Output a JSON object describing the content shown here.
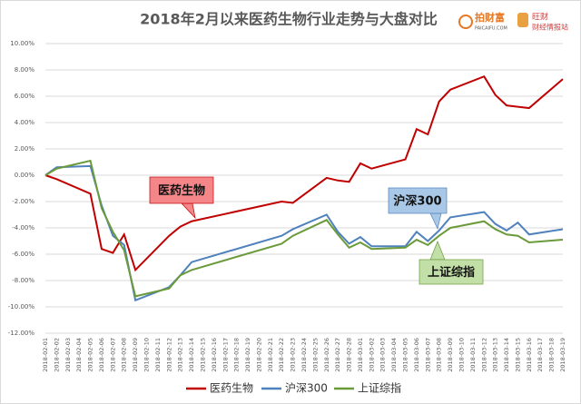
{
  "chart_data": {
    "type": "line",
    "title": "2018年2月以来医药生物行业走势与大盘对比",
    "logo": {
      "brand": "拍财富",
      "site": "PAICAIFU.COM",
      "name": "旺财",
      "tagline": "财经情报站"
    },
    "categories": [
      "2018-02-01",
      "2018-02-02",
      "2018-02-03",
      "2018-02-04",
      "2018-02-05",
      "2018-02-06",
      "2018-02-07",
      "2018-02-08",
      "2018-02-09",
      "2018-02-10",
      "2018-02-11",
      "2018-02-12",
      "2018-02-13",
      "2018-02-14",
      "2018-02-15",
      "2018-02-16",
      "2018-02-17",
      "2018-02-18",
      "2018-02-19",
      "2018-02-20",
      "2018-02-21",
      "2018-02-22",
      "2018-02-23",
      "2018-02-24",
      "2018-02-25",
      "2018-02-26",
      "2018-02-27",
      "2018-02-28",
      "2018-03-01",
      "2018-03-02",
      "2018-03-03",
      "2018-03-04",
      "2018-03-05",
      "2018-03-06",
      "2018-03-07",
      "2018-03-08",
      "2018-03-09",
      "2018-03-10",
      "2018-03-11",
      "2018-03-12",
      "2018-03-13",
      "2018-03-14",
      "2018-03-15",
      "2018-03-16",
      "2018-03-17",
      "2018-03-18",
      "2018-03-19"
    ],
    "x": [
      "2018-02-01",
      "2018-02-02",
      "2018-02-05",
      "2018-02-06",
      "2018-02-07",
      "2018-02-08",
      "2018-02-09",
      "2018-02-12",
      "2018-02-13",
      "2018-02-14",
      "2018-02-22",
      "2018-02-23",
      "2018-02-26",
      "2018-02-27",
      "2018-02-28",
      "2018-03-01",
      "2018-03-02",
      "2018-03-05",
      "2018-03-06",
      "2018-03-07",
      "2018-03-08",
      "2018-03-09",
      "2018-03-12",
      "2018-03-13",
      "2018-03-14",
      "2018-03-15",
      "2018-03-16",
      "2018-03-19"
    ],
    "series": [
      {
        "name": "医药生物",
        "color": "#c00000",
        "values": [
          0,
          -0.3,
          -1.4,
          -5.6,
          -5.9,
          -4.5,
          -7.2,
          -4.6,
          -3.9,
          -3.5,
          -2.0,
          -2.1,
          -0.2,
          -0.4,
          -0.5,
          0.9,
          0.5,
          1.2,
          3.5,
          3.1,
          5.6,
          6.5,
          7.5,
          6.1,
          5.3,
          5.2,
          5.1,
          7.3
        ]
      },
      {
        "name": "沪深300",
        "color": "#4f81bd",
        "values": [
          0,
          0.6,
          0.7,
          -2.3,
          -4.6,
          -5.3,
          -9.5,
          -8.5,
          -7.6,
          -6.6,
          -4.6,
          -4.1,
          -3.0,
          -4.3,
          -5.2,
          -4.7,
          -5.4,
          -5.4,
          -4.3,
          -5.0,
          -4.2,
          -3.2,
          -2.8,
          -3.7,
          -4.2,
          -3.6,
          -4.5,
          -4.1
        ]
      },
      {
        "name": "上证综指",
        "color": "#6a9a3a",
        "values": [
          0,
          0.5,
          1.1,
          -2.5,
          -4.3,
          -5.7,
          -9.2,
          -8.6,
          -7.6,
          -7.2,
          -5.2,
          -4.6,
          -3.4,
          -4.5,
          -5.5,
          -5.1,
          -5.6,
          -5.5,
          -4.9,
          -5.3,
          -4.6,
          -4.0,
          -3.5,
          -4.1,
          -4.5,
          -4.6,
          -5.1,
          -4.9
        ]
      }
    ],
    "annotations": [
      {
        "text": "医药生物",
        "color": "#f4868a"
      },
      {
        "text": "沪深300",
        "color": "#a9c8e8"
      },
      {
        "text": "上证综指",
        "color": "#c3dfa8"
      }
    ],
    "ylim": [
      -12,
      10
    ],
    "yticks": [
      {
        "value": -12,
        "label": "-12.00%"
      },
      {
        "value": -10,
        "label": "-10.00%"
      },
      {
        "value": -8,
        "label": "-8.00%"
      },
      {
        "value": -6,
        "label": "-6.00%"
      },
      {
        "value": -4,
        "label": "-4.00%"
      },
      {
        "value": -2,
        "label": "-2.00%"
      },
      {
        "value": 0,
        "label": "0.00%"
      },
      {
        "value": 2,
        "label": "2.00%"
      },
      {
        "value": 4,
        "label": "4.00%"
      },
      {
        "value": 6,
        "label": "6.00%"
      },
      {
        "value": 8,
        "label": "8.00%"
      },
      {
        "value": 10,
        "label": "10.00%"
      }
    ],
    "grid": true
  }
}
